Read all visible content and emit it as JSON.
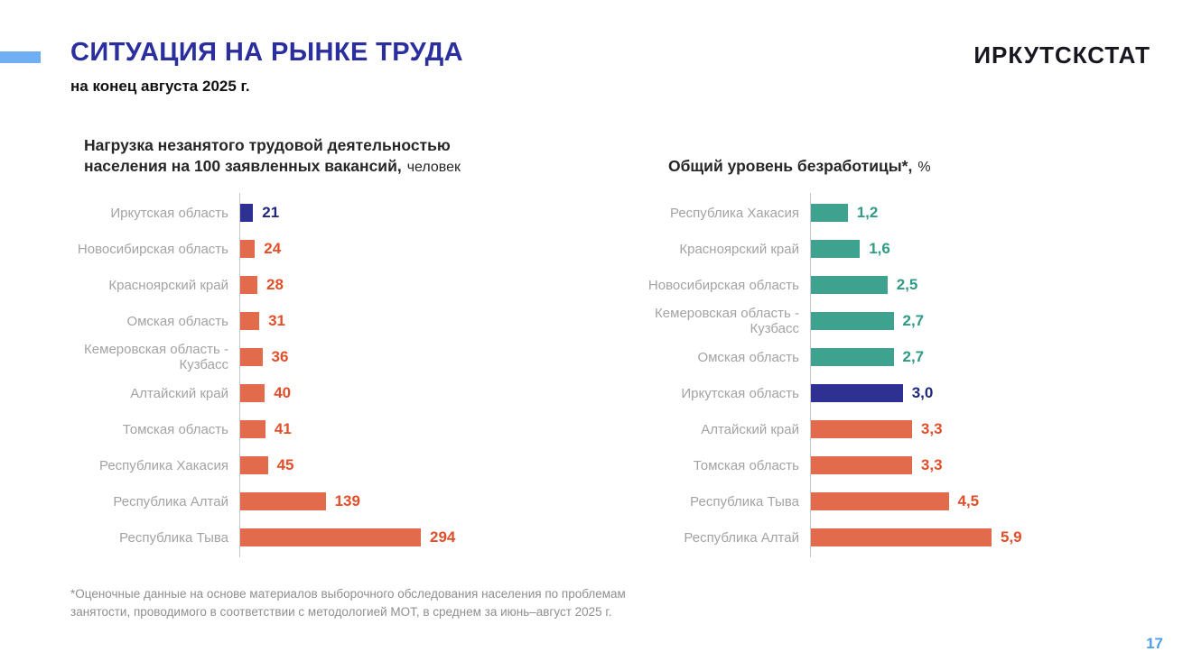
{
  "header": {
    "title": "СИТУАЦИЯ НА РЫНКЕ ТРУДА",
    "subtitle": "на конец августа 2025 г.",
    "logo": "ИРКУТСКСТАТ"
  },
  "footer": {
    "footnote_line1": "*Оценочные данные на основе материалов выборочного обследования населения по проблемам",
    "footnote_line2": "занятости, проводимого в соответствии с методологией МОТ, в среднем за июнь–август 2025 г.",
    "page_number": "17"
  },
  "colors": {
    "accent_bar": "#6FAEF2",
    "title": "#2B2F9E",
    "axis": "#C8C8C8",
    "category_label": "#A3A3A3",
    "page_number": "#4D9FE8",
    "navy": {
      "bar": "#2E3192",
      "label": "#20287E"
    },
    "orange": {
      "bar": "#E26B4C",
      "label": "#E14F2A"
    },
    "teal": {
      "bar": "#3EA28E",
      "label": "#2F9B85"
    }
  },
  "chart_data": [
    {
      "type": "bar",
      "orientation": "horizontal",
      "title": "Нагрузка незанятого трудовой деятельностью населения на 100 заявленных вакансий,",
      "unit": "человек",
      "xlabel": "",
      "ylabel": "",
      "xlim": [
        0,
        294
      ],
      "grid": false,
      "legend": "none",
      "categories": [
        "Иркутская область",
        "Новосибирская область",
        "Красноярский край",
        "Омская область",
        "Кемеровская область - Кузбасс",
        "Алтайский край",
        "Томская область",
        "Республика Хакасия",
        "Республика Алтай",
        "Республика Тыва"
      ],
      "values": [
        21,
        24,
        28,
        31,
        36,
        40,
        41,
        45,
        139,
        294
      ],
      "rows": [
        {
          "label": "Иркутская область",
          "value": 21,
          "display": "21",
          "color": "navy"
        },
        {
          "label": "Новосибирская область",
          "value": 24,
          "display": "24",
          "color": "orange"
        },
        {
          "label": "Красноярский край",
          "value": 28,
          "display": "28",
          "color": "orange"
        },
        {
          "label": "Омская область",
          "value": 31,
          "display": "31",
          "color": "orange"
        },
        {
          "label": "Кемеровская область - Кузбасс",
          "value": 36,
          "display": "36",
          "color": "orange"
        },
        {
          "label": "Алтайский край",
          "value": 40,
          "display": "40",
          "color": "orange"
        },
        {
          "label": "Томская область",
          "value": 41,
          "display": "41",
          "color": "orange"
        },
        {
          "label": "Республика Хакасия",
          "value": 45,
          "display": "45",
          "color": "orange"
        },
        {
          "label": "Республика Алтай",
          "value": 139,
          "display": "139",
          "color": "orange"
        },
        {
          "label": "Республика Тыва",
          "value": 294,
          "display": "294",
          "color": "orange"
        }
      ]
    },
    {
      "type": "bar",
      "orientation": "horizontal",
      "title": "Общий уровень безработицы*,",
      "unit": "%",
      "xlabel": "",
      "ylabel": "",
      "xlim": [
        0,
        5.9
      ],
      "grid": false,
      "legend": "none",
      "categories": [
        "Республика Хакасия",
        "Красноярский край",
        "Новосибирская область",
        "Кемеровская область - Кузбасс",
        "Омская область",
        "Иркутская область",
        "Алтайский край",
        "Томская область",
        "Республика Тыва",
        "Республика Алтай"
      ],
      "values": [
        1.2,
        1.6,
        2.5,
        2.7,
        2.7,
        3.0,
        3.3,
        3.3,
        4.5,
        5.9
      ],
      "rows": [
        {
          "label": "Республика Хакасия",
          "value": 1.2,
          "display": "1,2",
          "color": "teal"
        },
        {
          "label": "Красноярский край",
          "value": 1.6,
          "display": "1,6",
          "color": "teal"
        },
        {
          "label": "Новосибирская область",
          "value": 2.5,
          "display": "2,5",
          "color": "teal"
        },
        {
          "label": "Кемеровская область - Кузбасс",
          "value": 2.7,
          "display": "2,7",
          "color": "teal"
        },
        {
          "label": "Омская область",
          "value": 2.7,
          "display": "2,7",
          "color": "teal"
        },
        {
          "label": "Иркутская область",
          "value": 3.0,
          "display": "3,0",
          "color": "navy"
        },
        {
          "label": "Алтайский край",
          "value": 3.3,
          "display": "3,3",
          "color": "orange"
        },
        {
          "label": "Томская область",
          "value": 3.3,
          "display": "3,3",
          "color": "orange"
        },
        {
          "label": "Республика Тыва",
          "value": 4.5,
          "display": "4,5",
          "color": "orange"
        },
        {
          "label": "Республика Алтай",
          "value": 5.9,
          "display": "5,9",
          "color": "orange"
        }
      ]
    }
  ]
}
